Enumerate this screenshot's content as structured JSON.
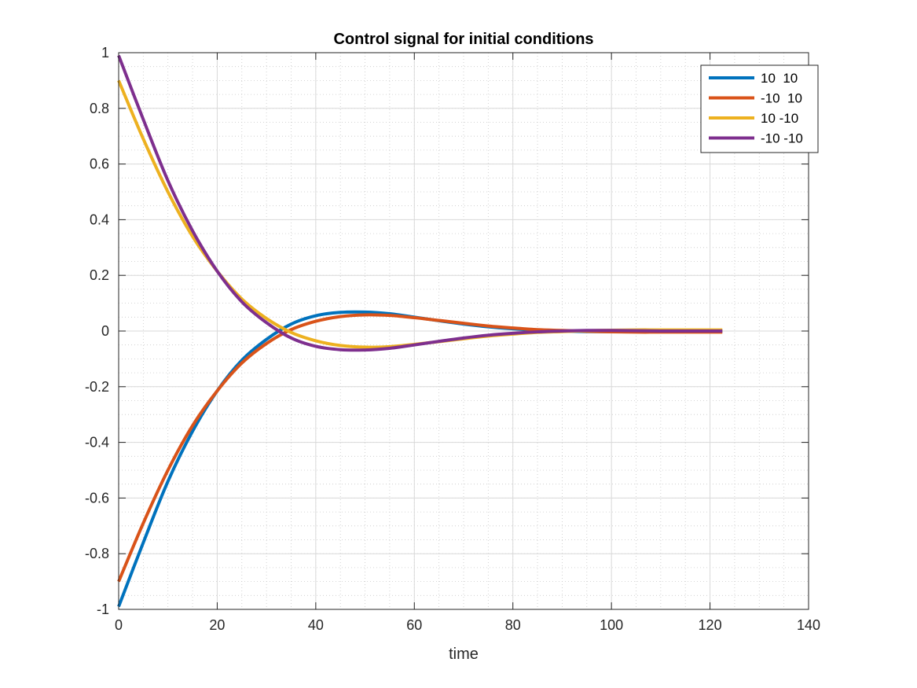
{
  "chart_data": {
    "type": "line",
    "title": "Control signal for initial conditions",
    "xlabel": "time",
    "ylabel": "",
    "xlim": [
      0,
      140
    ],
    "ylim": [
      -1,
      1
    ],
    "xticks": [
      0,
      20,
      40,
      60,
      80,
      100,
      120,
      140
    ],
    "yticks": [
      -1,
      -0.8,
      -0.6,
      -0.4,
      -0.2,
      0,
      0.2,
      0.4,
      0.6,
      0.8,
      1
    ],
    "xtick_labels": [
      "0",
      "20",
      "40",
      "60",
      "80",
      "100",
      "120",
      "140"
    ],
    "ytick_labels": [
      "-1",
      "-0.8",
      "-0.6",
      "-0.4",
      "-0.2",
      "0",
      "0.2",
      "0.4",
      "0.6",
      "0.8",
      "1"
    ],
    "grid": true,
    "minor_grid": true,
    "legend_position": "top-right",
    "series": [
      {
        "name": "10  10",
        "color": "#0072BD",
        "x": [
          0,
          5,
          10,
          15,
          20,
          25,
          30,
          35,
          40,
          45,
          50,
          55,
          60,
          65,
          70,
          75,
          80,
          85,
          90,
          95,
          100,
          105,
          110,
          115,
          122.5
        ],
        "y": [
          -0.99,
          -0.76,
          -0.54,
          -0.36,
          -0.215,
          -0.105,
          -0.03,
          0.025,
          0.055,
          0.067,
          0.068,
          0.062,
          0.05,
          0.037,
          0.025,
          0.015,
          0.008,
          0.003,
          0.0,
          -0.002,
          -0.002,
          -0.001,
          0.0,
          0.0,
          0.0
        ]
      },
      {
        "name": "-10  10",
        "color": "#D95319",
        "x": [
          0,
          5,
          10,
          15,
          20,
          25,
          30,
          35,
          40,
          45,
          50,
          55,
          60,
          65,
          70,
          75,
          80,
          85,
          90,
          95,
          100,
          105,
          110,
          115,
          122.5
        ],
        "y": [
          -0.9,
          -0.69,
          -0.5,
          -0.34,
          -0.215,
          -0.115,
          -0.045,
          0.005,
          0.035,
          0.052,
          0.058,
          0.056,
          0.048,
          0.038,
          0.028,
          0.018,
          0.011,
          0.005,
          0.002,
          -0.001,
          -0.003,
          -0.004,
          -0.004,
          -0.004,
          -0.004
        ]
      },
      {
        "name": "10 -10",
        "color": "#EDB120",
        "x": [
          0,
          5,
          10,
          15,
          20,
          25,
          30,
          35,
          40,
          45,
          50,
          55,
          60,
          65,
          70,
          75,
          80,
          85,
          90,
          95,
          100,
          105,
          110,
          115,
          122.5
        ],
        "y": [
          0.9,
          0.69,
          0.5,
          0.34,
          0.215,
          0.115,
          0.045,
          -0.005,
          -0.035,
          -0.052,
          -0.058,
          -0.056,
          -0.048,
          -0.038,
          -0.028,
          -0.018,
          -0.011,
          -0.005,
          -0.002,
          0.001,
          0.003,
          0.004,
          0.004,
          0.004,
          0.004
        ]
      },
      {
        "name": "-10 -10",
        "color": "#7E2F8E",
        "x": [
          0,
          5,
          10,
          15,
          20,
          25,
          30,
          35,
          40,
          45,
          50,
          55,
          60,
          65,
          70,
          75,
          80,
          85,
          90,
          95,
          100,
          105,
          110,
          115,
          122.5
        ],
        "y": [
          0.99,
          0.76,
          0.54,
          0.36,
          0.215,
          0.105,
          0.03,
          -0.025,
          -0.055,
          -0.067,
          -0.068,
          -0.062,
          -0.05,
          -0.037,
          -0.025,
          -0.015,
          -0.008,
          -0.003,
          0.0,
          0.002,
          0.002,
          0.001,
          0.0,
          0.0,
          0.0
        ]
      }
    ]
  }
}
